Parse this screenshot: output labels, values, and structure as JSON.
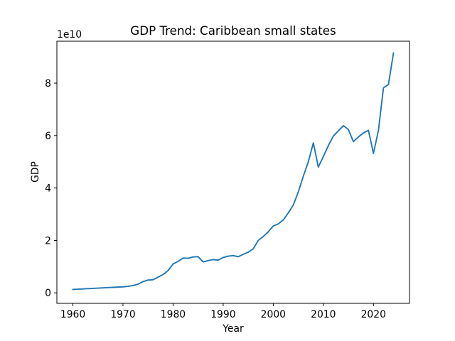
{
  "chart_data": {
    "type": "line",
    "title": "GDP Trend: Caribbean small states",
    "xlabel": "Year",
    "ylabel": "GDP",
    "y_offset_text": "1e10",
    "xlim": [
      1956.8,
      2027.2
    ],
    "ylim": [
      -0.4,
      9.6
    ],
    "x_ticks": [
      1960,
      1970,
      1980,
      1990,
      2000,
      2010,
      2020
    ],
    "y_ticks": [
      0,
      2,
      4,
      6,
      8
    ],
    "grid": false,
    "line_color": "#1f77b4",
    "series": [
      {
        "x": [
          1960,
          1961,
          1962,
          1963,
          1964,
          1965,
          1966,
          1967,
          1968,
          1969,
          1970,
          1971,
          1972,
          1973,
          1974,
          1975,
          1976,
          1977,
          1978,
          1979,
          1980,
          1981,
          1982,
          1983,
          1984,
          1985,
          1986,
          1987,
          1988,
          1989,
          1990,
          1991,
          1992,
          1993,
          1994,
          1995,
          1996,
          1997,
          1998,
          1999,
          2000,
          2001,
          2002,
          2003,
          2004,
          2005,
          2006,
          2007,
          2008,
          2009,
          2010,
          2011,
          2012,
          2013,
          2014,
          2015,
          2016,
          2017,
          2018,
          2019,
          2020,
          2021,
          2022,
          2023,
          2024
        ],
        "values": [
          0.13,
          0.14,
          0.15,
          0.16,
          0.17,
          0.18,
          0.19,
          0.2,
          0.21,
          0.22,
          0.23,
          0.25,
          0.28,
          0.33,
          0.43,
          0.49,
          0.5,
          0.6,
          0.7,
          0.85,
          1.1,
          1.2,
          1.33,
          1.32,
          1.37,
          1.38,
          1.18,
          1.23,
          1.27,
          1.25,
          1.35,
          1.4,
          1.42,
          1.38,
          1.47,
          1.55,
          1.68,
          2.0,
          2.15,
          2.33,
          2.55,
          2.63,
          2.78,
          3.05,
          3.35,
          3.85,
          4.45,
          5.0,
          5.72,
          4.8,
          5.2,
          5.62,
          5.98,
          6.18,
          6.38,
          6.23,
          5.77,
          5.95,
          6.1,
          6.2,
          5.32,
          6.2,
          7.82,
          7.95,
          9.15
        ]
      }
    ]
  }
}
